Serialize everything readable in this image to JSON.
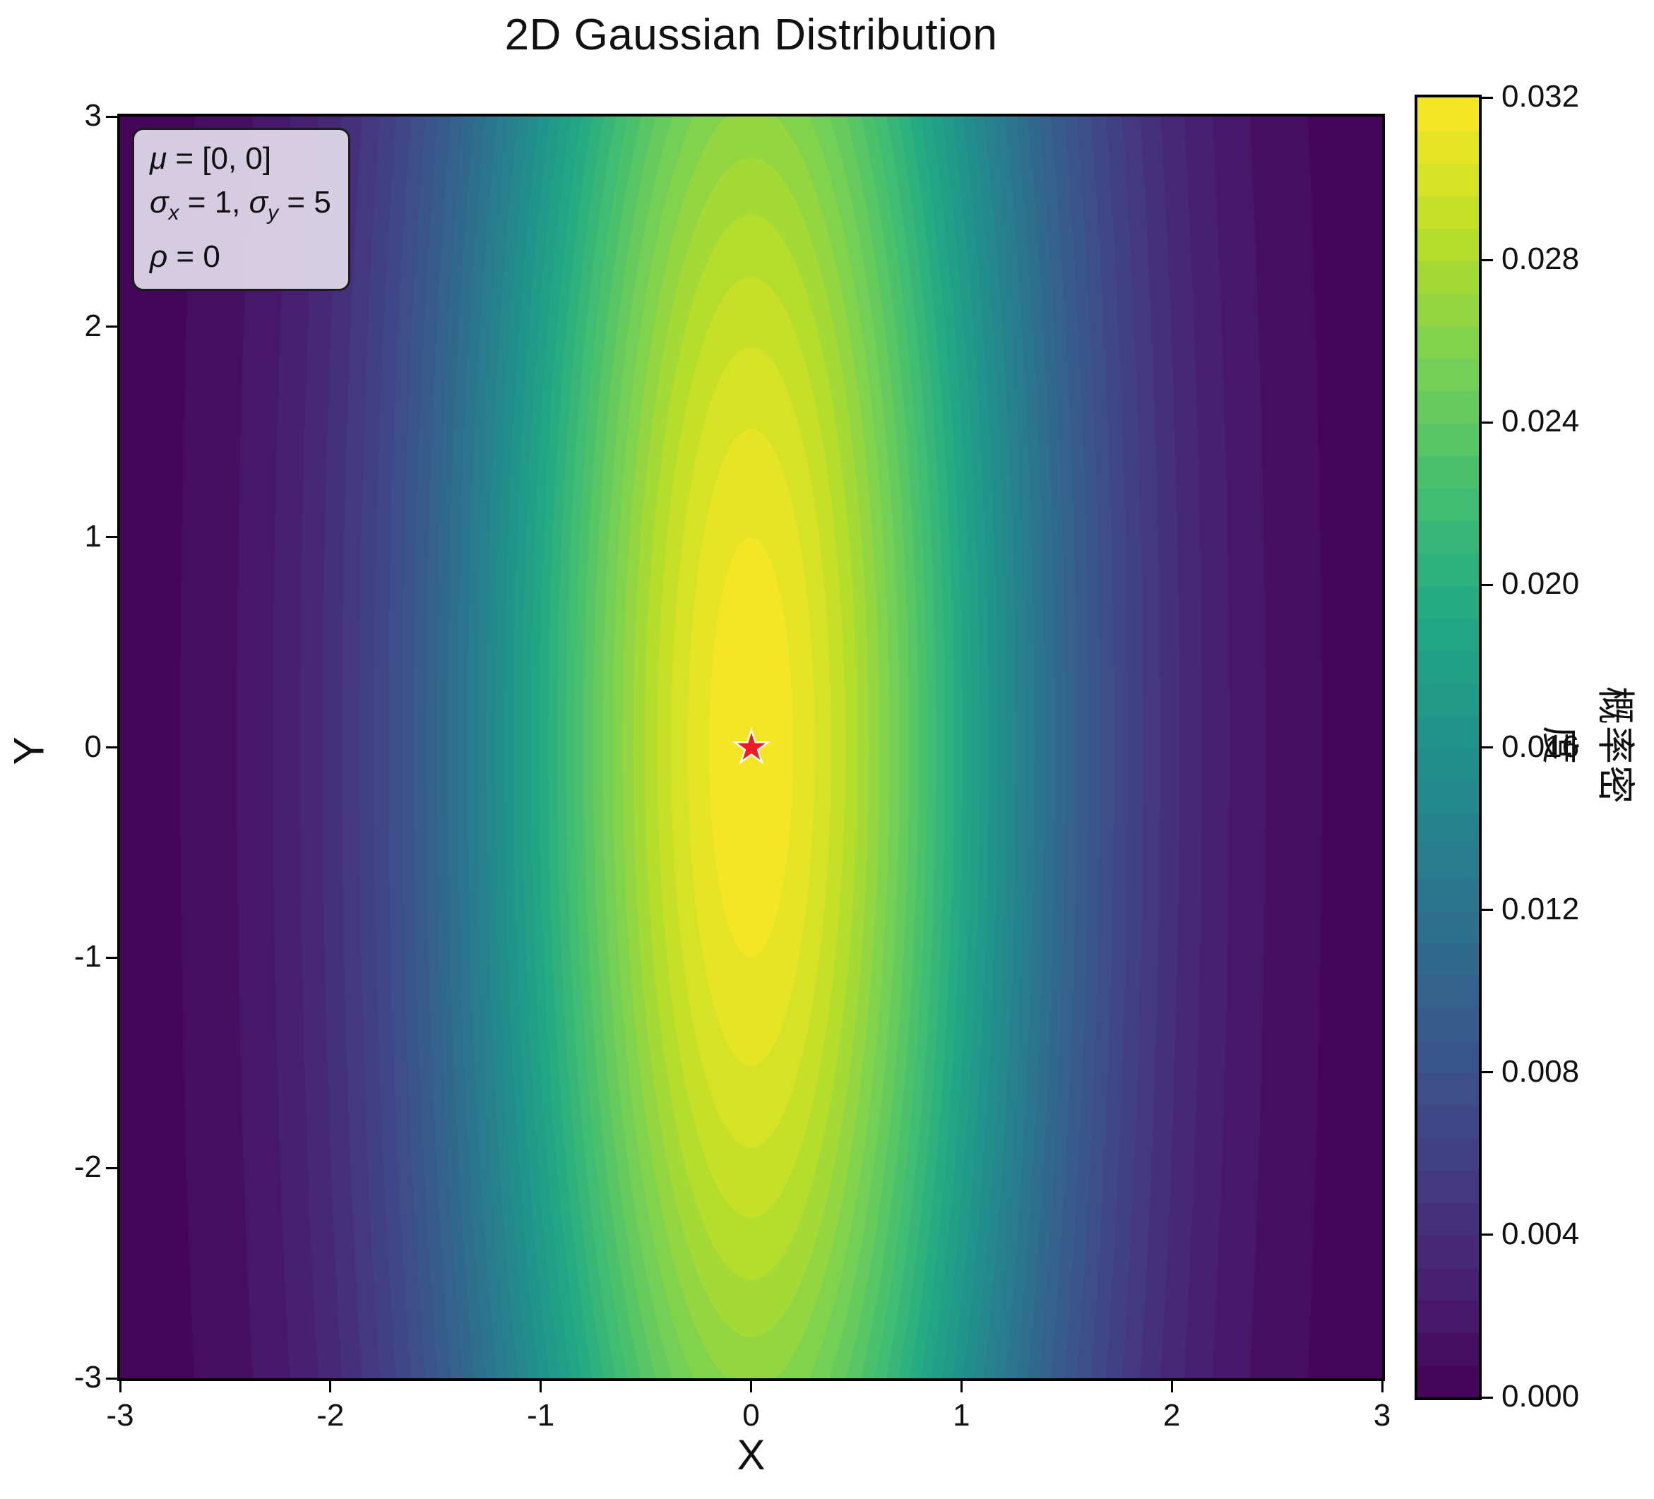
{
  "figure": {
    "title": "2D Gaussian Distribution",
    "background": "#ffffff"
  },
  "axes": {
    "xlabel": "X",
    "ylabel": "Y",
    "x_tick_labels": [
      "-3",
      "-2",
      "-1",
      "0",
      "1",
      "2",
      "3"
    ],
    "y_tick_labels": [
      "-3",
      "-2",
      "-1",
      "0",
      "1",
      "2",
      "3"
    ]
  },
  "annotation": {
    "mu_symbol": "μ",
    "mu_text": " = [0, 0]",
    "sigma_x_symbol": "σ",
    "sigma_x_sub": "x",
    "sigma_x_text": " = 1, ",
    "sigma_y_symbol": "σ",
    "sigma_y_sub": "y",
    "sigma_y_text": " = 5",
    "rho_symbol": "ρ",
    "rho_text": " = 0",
    "box_fill": "rgba(222,215,233,0.95)",
    "box_border": "#1c1c1c"
  },
  "colorbar": {
    "label": "概率密度",
    "tick_labels": [
      "0.000",
      "0.004",
      "0.008",
      "0.012",
      "0.016",
      "0.020",
      "0.024",
      "0.028",
      "0.032"
    ]
  },
  "chart_data": {
    "type": "heatmap",
    "title": "2D Gaussian Distribution",
    "xlabel": "X",
    "ylabel": "Y",
    "x_range": [
      -3,
      3
    ],
    "y_range": [
      -3,
      3
    ],
    "x_ticks": [
      -3,
      -2,
      -1,
      0,
      1,
      2,
      3
    ],
    "y_ticks": [
      -3,
      -2,
      -1,
      0,
      1,
      2,
      3
    ],
    "distribution": {
      "kind": "bivariate_gaussian",
      "mu": [
        0,
        0
      ],
      "sigma_x": 1,
      "sigma_y": 5,
      "rho": 0,
      "peak_density": 0.0318
    },
    "contour": {
      "style": "filled",
      "levels": 40,
      "vmin": 0.0,
      "vmax": 0.032,
      "level_step": 0.0008
    },
    "colorbar_label": "概率密度",
    "colorbar_ticks": [
      0.0,
      0.004,
      0.008,
      0.012,
      0.016,
      0.02,
      0.024,
      0.028,
      0.032
    ],
    "colormap": {
      "name": "viridis",
      "stops": [
        "#440154",
        "#482475",
        "#414487",
        "#355f8d",
        "#2a788e",
        "#21918c",
        "#22a884",
        "#44bf70",
        "#7ad151",
        "#bddf26",
        "#fde725"
      ]
    },
    "peak_marker": {
      "x": 0,
      "y": 0,
      "shape": "star",
      "fill": "#ec1c24",
      "edge": "#ffffff"
    },
    "grid": false,
    "legend": "none"
  }
}
